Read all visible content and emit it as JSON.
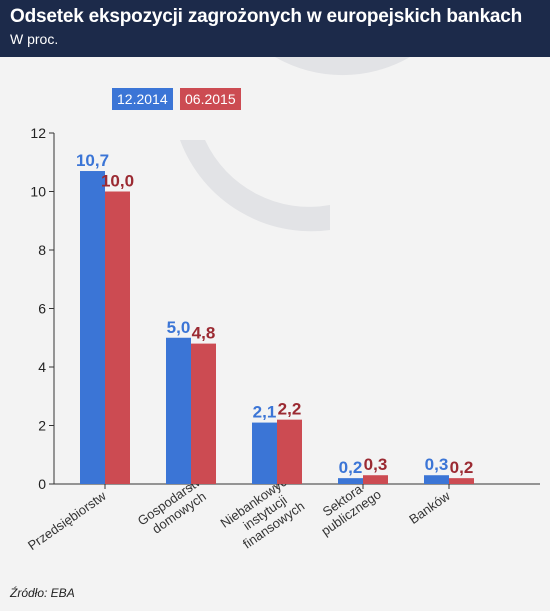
{
  "header": {
    "title": "Odsetek ekspozycji zagrożonych w europejskich bankach",
    "subtitle": "W proc."
  },
  "source": "Źródło: EBA",
  "colors": {
    "blue": "#3b75d6",
    "red": "#cc4b52",
    "header_bg": "#1c2a4a"
  },
  "chart_data": {
    "type": "bar",
    "title": "Odsetek ekspozycji zagrożonych w europejskich bankach",
    "subtitle": "W proc.",
    "categories": [
      [
        "Przedsiębiorstw"
      ],
      [
        "Gospodarstw",
        "domowych"
      ],
      [
        "Niebankowych",
        "instytucji",
        "finansowych"
      ],
      [
        "Sektora",
        "publicznego"
      ],
      [
        "Banków"
      ]
    ],
    "series": [
      {
        "name": "12.2014",
        "color": "#3b75d6",
        "label_color": "#3b75d6",
        "values": [
          10.7,
          5.0,
          2.1,
          0.2,
          0.3
        ],
        "labels": [
          "10,7",
          "5,0",
          "2,1",
          "0,2",
          "0,3"
        ]
      },
      {
        "name": "06.2015",
        "color": "#cc4b52",
        "label_color": "#9b2a32",
        "values": [
          10.0,
          4.8,
          2.2,
          0.3,
          0.2
        ],
        "labels": [
          "10,0",
          "4,8",
          "2,2",
          "0,3",
          "0,2"
        ]
      }
    ],
    "yticks": [
      0,
      2,
      4,
      6,
      8,
      10,
      12
    ],
    "ylim": [
      0,
      12
    ],
    "legend_position": "top-left",
    "grid": false
  }
}
